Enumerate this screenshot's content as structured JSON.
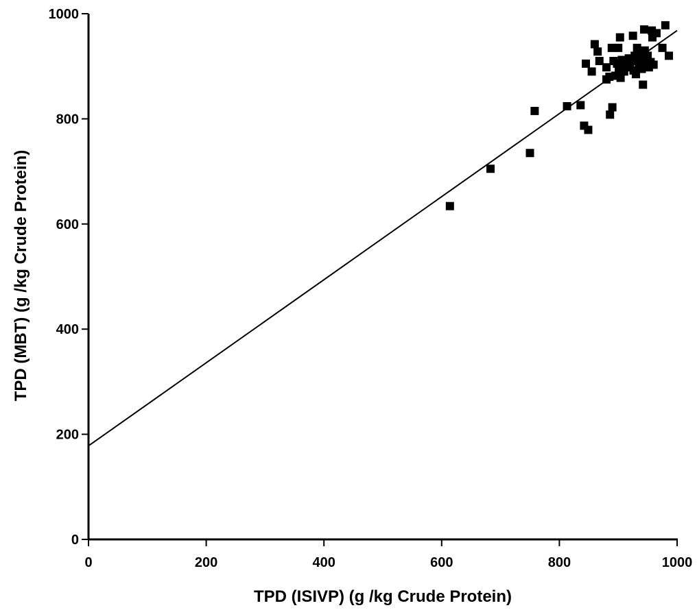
{
  "chart_data": {
    "type": "scatter",
    "title": "",
    "xlabel": "TPD (ISIVP) (g /kg Crude Protein)",
    "ylabel": "TPD (MBT) (g /kg Crude Protein)",
    "xlim": [
      0,
      1000
    ],
    "ylim": [
      0,
      1000
    ],
    "x_ticks": [
      0,
      200,
      400,
      600,
      800,
      1000
    ],
    "y_ticks": [
      0,
      200,
      400,
      600,
      800,
      1000
    ],
    "x_tick_labels": [
      "0",
      "200",
      "400",
      "600",
      "800",
      "1000"
    ],
    "y_tick_labels": [
      "0",
      "200",
      "400",
      "600",
      "800",
      "1000"
    ],
    "grid": false,
    "marker": "square",
    "color": "#000000",
    "points": [
      [
        614,
        634
      ],
      [
        683,
        705
      ],
      [
        750,
        735
      ],
      [
        758,
        815
      ],
      [
        813,
        824
      ],
      [
        836,
        826
      ],
      [
        842,
        787
      ],
      [
        849,
        779
      ],
      [
        845,
        905
      ],
      [
        855,
        890
      ],
      [
        860,
        942
      ],
      [
        865,
        928
      ],
      [
        868,
        910
      ],
      [
        880,
        898
      ],
      [
        880,
        875
      ],
      [
        885,
        880
      ],
      [
        886,
        808
      ],
      [
        889,
        935
      ],
      [
        890,
        822
      ],
      [
        892,
        910
      ],
      [
        895,
        882
      ],
      [
        898,
        905
      ],
      [
        900,
        935
      ],
      [
        901,
        892
      ],
      [
        903,
        955
      ],
      [
        904,
        878
      ],
      [
        906,
        912
      ],
      [
        910,
        890
      ],
      [
        912,
        905
      ],
      [
        915,
        898
      ],
      [
        918,
        915
      ],
      [
        920,
        904
      ],
      [
        922,
        910
      ],
      [
        925,
        958
      ],
      [
        926,
        892
      ],
      [
        928,
        920
      ],
      [
        930,
        885
      ],
      [
        932,
        935
      ],
      [
        934,
        915
      ],
      [
        935,
        900
      ],
      [
        937,
        928
      ],
      [
        938,
        910
      ],
      [
        940,
        895
      ],
      [
        942,
        865
      ],
      [
        943,
        905
      ],
      [
        944,
        970
      ],
      [
        945,
        930
      ],
      [
        947,
        915
      ],
      [
        948,
        900
      ],
      [
        950,
        920
      ],
      [
        952,
        898
      ],
      [
        955,
        908
      ],
      [
        957,
        968
      ],
      [
        958,
        955
      ],
      [
        960,
        903
      ],
      [
        965,
        963
      ],
      [
        975,
        935
      ],
      [
        980,
        978
      ],
      [
        986,
        920
      ]
    ],
    "fit_line": {
      "intercept": 178,
      "slope": 0.79,
      "x_range": [
        0,
        1000
      ]
    }
  }
}
